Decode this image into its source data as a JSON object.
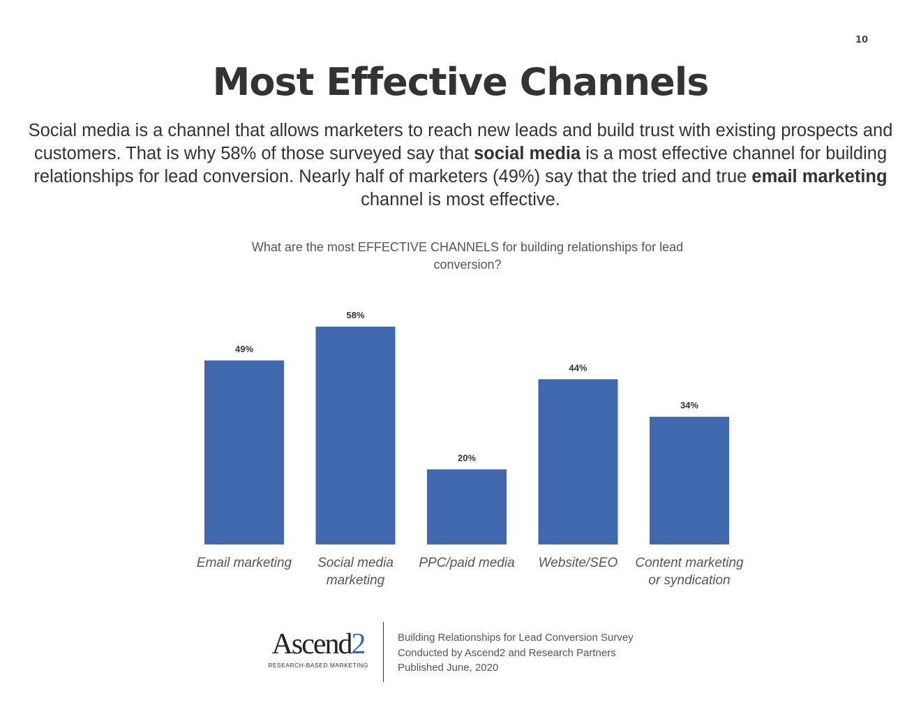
{
  "page_number": "10",
  "title": "Most Effective Channels",
  "intro": {
    "p1": "Social media is a channel that allows marketers to reach new leads and build trust with existing prospects and customers. That is why 58% of those surveyed say that ",
    "b1": "social media",
    "p2": " is a most effective channel for building relationships for lead conversion. Nearly half of marketers (49%) say that the tried and true ",
    "b2": "email marketing",
    "p3": " channel is most effective."
  },
  "chart_data": {
    "type": "bar",
    "title": "What are the most EFFECTIVE CHANNELS for building relationships for lead conversion?",
    "categories": [
      [
        "Email marketing"
      ],
      [
        "Social media",
        "marketing"
      ],
      [
        "PPC/paid media"
      ],
      [
        "Website/SEO"
      ],
      [
        "Content marketing",
        "or syndication"
      ]
    ],
    "values": [
      49,
      58,
      20,
      44,
      34
    ],
    "data_labels": [
      "49%",
      "58%",
      "20%",
      "44%",
      "34%"
    ],
    "unit": "%",
    "ylim": [
      0,
      60
    ],
    "grid": false,
    "bar_color": "#4169b0"
  },
  "footer": {
    "logo_text": "Ascend",
    "logo_number": "2",
    "logo_tagline": "RESEARCH-BASED MARKETING",
    "lines": [
      "Building Relationships for Lead Conversion Survey",
      "Conducted by Ascend2 and Research Partners",
      "Published June, 2020"
    ]
  }
}
